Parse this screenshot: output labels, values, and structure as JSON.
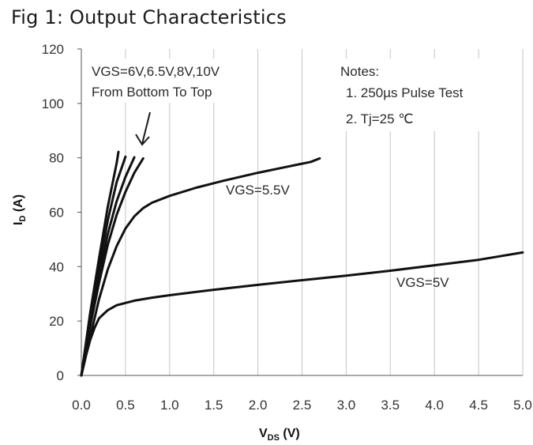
{
  "chart_data": {
    "type": "line",
    "title": "Fig 1: Output Characteristics",
    "xlabel": {
      "main": "V",
      "sub": "DS",
      "unit": " (V)"
    },
    "ylabel": {
      "main": "I",
      "sub": "D",
      "unit": " (A)"
    },
    "xlim": [
      0,
      5.0
    ],
    "ylim": [
      0,
      120
    ],
    "x_ticks": [
      "0.0",
      "0.5",
      "1.0",
      "1.5",
      "2.0",
      "2.5",
      "3.0",
      "3.5",
      "4.0",
      "4.5",
      "5.0"
    ],
    "y_ticks": [
      "0",
      "20",
      "40",
      "60",
      "80",
      "100",
      "120"
    ],
    "grid": "vertical",
    "annotations": {
      "vgs_list": "VGS=6V,6.5V,8V,10V",
      "order_note": "From Bottom To Top",
      "notes_title": "Notes:",
      "note_1": "1. 250µs  Pulse Test",
      "note_2": "2. Tj=25 ℃",
      "label_55": "VGS=5.5V",
      "label_5": "VGS=5V"
    },
    "series": [
      {
        "name": "VGS=5V",
        "points": [
          [
            0,
            0
          ],
          [
            0.05,
            7
          ],
          [
            0.1,
            13
          ],
          [
            0.15,
            17.5
          ],
          [
            0.2,
            21
          ],
          [
            0.3,
            24
          ],
          [
            0.4,
            25.8
          ],
          [
            0.6,
            27.5
          ],
          [
            0.8,
            28.6
          ],
          [
            1.0,
            29.5
          ],
          [
            1.5,
            31.5
          ],
          [
            2.0,
            33.3
          ],
          [
            2.5,
            35
          ],
          [
            3.0,
            36.7
          ],
          [
            3.5,
            38.5
          ],
          [
            4.0,
            40.5
          ],
          [
            4.5,
            42.5
          ],
          [
            5.0,
            45.2
          ]
        ]
      },
      {
        "name": "VGS=5.5V",
        "points": [
          [
            0,
            0
          ],
          [
            0.1,
            14
          ],
          [
            0.2,
            28
          ],
          [
            0.3,
            39
          ],
          [
            0.4,
            47.5
          ],
          [
            0.5,
            54
          ],
          [
            0.6,
            58.5
          ],
          [
            0.7,
            61.5
          ],
          [
            0.8,
            63.5
          ],
          [
            1.0,
            66
          ],
          [
            1.3,
            69
          ],
          [
            1.6,
            71.5
          ],
          [
            2.0,
            74.5
          ],
          [
            2.3,
            76.5
          ],
          [
            2.6,
            78.5
          ],
          [
            2.7,
            79.8
          ]
        ]
      },
      {
        "name": "VGS=6V",
        "points": [
          [
            0,
            0
          ],
          [
            0.1,
            18
          ],
          [
            0.2,
            34
          ],
          [
            0.3,
            48
          ],
          [
            0.4,
            59
          ],
          [
            0.5,
            67.5
          ],
          [
            0.6,
            74.5
          ],
          [
            0.7,
            79.8
          ]
        ]
      },
      {
        "name": "VGS=6.5V",
        "points": [
          [
            0,
            0
          ],
          [
            0.1,
            20
          ],
          [
            0.2,
            37
          ],
          [
            0.3,
            52
          ],
          [
            0.4,
            64
          ],
          [
            0.5,
            73
          ],
          [
            0.6,
            80.2
          ]
        ]
      },
      {
        "name": "VGS=8V",
        "points": [
          [
            0,
            0
          ],
          [
            0.1,
            21
          ],
          [
            0.2,
            40
          ],
          [
            0.3,
            57
          ],
          [
            0.4,
            71
          ],
          [
            0.5,
            80.4
          ]
        ]
      },
      {
        "name": "VGS=10V",
        "points": [
          [
            0,
            0
          ],
          [
            0.1,
            23
          ],
          [
            0.2,
            43
          ],
          [
            0.3,
            62
          ],
          [
            0.4,
            78
          ],
          [
            0.42,
            82.2
          ]
        ]
      }
    ]
  }
}
